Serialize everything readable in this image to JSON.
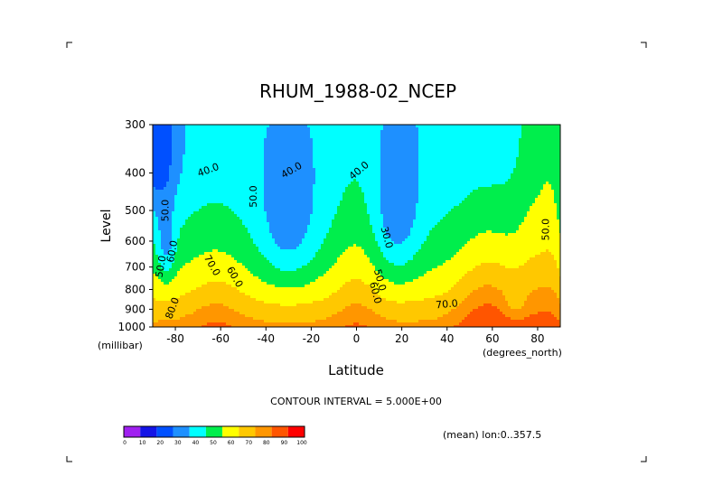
{
  "chart_data": {
    "type": "contour",
    "title": "RHUM_1988-02_NCEP",
    "xlabel": "Latitude",
    "xunits": "(degrees_north)",
    "ylabel": "Level",
    "yunits": "(millibar)",
    "xlim": [
      -90,
      90
    ],
    "ylim": [
      1000,
      300
    ],
    "y_log_pressure": true,
    "x_ticks": [
      -80,
      -60,
      -40,
      -20,
      0,
      20,
      40,
      60,
      80
    ],
    "y_ticks": [
      300,
      400,
      500,
      600,
      700,
      800,
      900,
      1000
    ],
    "contour_interval_text": "CONTOUR INTERVAL = 5.000E+00",
    "subset_text": "(mean) lon:0..357.5",
    "contour_labels": [
      {
        "text": "40.0",
        "lat": -65,
        "lev": 400,
        "angle": -20
      },
      {
        "text": "40.0",
        "lat": -28,
        "lev": 400,
        "angle": -30
      },
      {
        "text": "40.0",
        "lat": 2,
        "lev": 400,
        "angle": -40
      },
      {
        "text": "50.0",
        "lat": -44,
        "lev": 460,
        "angle": -90
      },
      {
        "text": "50.0",
        "lat": -83,
        "lev": 500,
        "angle": -90
      },
      {
        "text": "50.0",
        "lat": 85,
        "lev": 560,
        "angle": -90
      },
      {
        "text": "60.0",
        "lat": -80,
        "lev": 640,
        "angle": -80
      },
      {
        "text": "50.0",
        "lat": -85,
        "lev": 700,
        "angle": -80
      },
      {
        "text": "70.0",
        "lat": -65,
        "lev": 700,
        "angle": 60
      },
      {
        "text": "60.0",
        "lat": -55,
        "lev": 750,
        "angle": 60
      },
      {
        "text": "30.0",
        "lat": 12,
        "lev": 590,
        "angle": 75
      },
      {
        "text": "50.0",
        "lat": 9,
        "lev": 760,
        "angle": 75
      },
      {
        "text": "60.0",
        "lat": 7,
        "lev": 820,
        "angle": 75
      },
      {
        "text": "70.0",
        "lat": 40,
        "lev": 890,
        "angle": -5
      },
      {
        "text": "80.0",
        "lat": -80,
        "lev": 900,
        "angle": -70
      }
    ],
    "colorbar": {
      "levels": [
        0,
        10,
        20,
        30,
        40,
        50,
        60,
        70,
        80,
        90,
        100
      ],
      "colors": [
        "#a020f0",
        "#1414e6",
        "#0050ff",
        "#1e90ff",
        "#00ffff",
        "#00ee4c",
        "#ffff00",
        "#ffc800",
        "#ff9600",
        "#ff5500",
        "#ff0000"
      ]
    },
    "grid": false
  }
}
